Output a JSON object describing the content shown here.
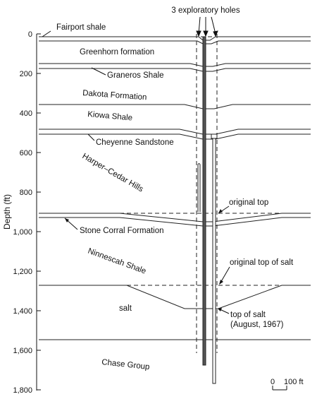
{
  "title": "3 exploratory holes",
  "y_axis": {
    "label": "Depth (ft)",
    "ticks": [
      "0",
      "200",
      "400",
      "600",
      "800",
      "1,000",
      "1,200",
      "1,400",
      "1,600",
      "1,800"
    ]
  },
  "formations": [
    "Fairport shale",
    "Greenhorn formation",
    "Graneros Shale",
    "Dakota Formation",
    "Kiowa Shale",
    "Cheyenne Sandstone",
    "Harper–Cedar Hills",
    "Stone Corral Formation",
    "Ninnescah Shale",
    "salt",
    "Chase Group"
  ],
  "annotations": {
    "original_top": "original top",
    "original_top_of_salt": "original top of salt",
    "top_of_salt_line1": "top of salt",
    "top_of_salt_line2": "(August, 1967)"
  },
  "scale_bar": {
    "start": "0",
    "end": "100 ft"
  }
}
